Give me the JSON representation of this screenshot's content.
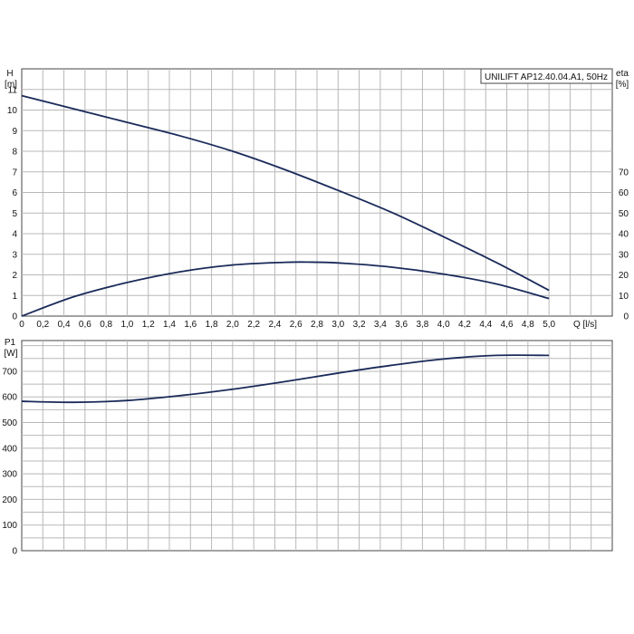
{
  "chart_title": "UNILIFT AP12.40.04.A1, 50Hz",
  "colors": {
    "curve": "#1a2a5a",
    "grid": "#b8b8b8",
    "frame": "#444444",
    "background": "#ffffff"
  },
  "chart_data": [
    {
      "type": "line",
      "panel": "top",
      "title": "UNILIFT AP12.40.04.A1, 50Hz",
      "xlabel": "Q [l/s]",
      "ylabel_line1": "H",
      "ylabel_line2": "[m]",
      "y2label_line1": "eta",
      "y2label_line2": "[%]",
      "xlim": [
        0,
        5.6
      ],
      "ylim": [
        0,
        12
      ],
      "y2lim": [
        0,
        120
      ],
      "x_ticks": [
        "0",
        "0,2",
        "0,4",
        "0,6",
        "0,8",
        "1,0",
        "1,2",
        "1,4",
        "1,6",
        "1,8",
        "2,0",
        "2,2",
        "2,4",
        "2,6",
        "2,8",
        "3,0",
        "3,2",
        "3,4",
        "3,6",
        "3,8",
        "4,0",
        "4,2",
        "4,4",
        "4,6",
        "4,8",
        "5,0"
      ],
      "y_ticks": [
        "0",
        "1",
        "2",
        "3",
        "4",
        "5",
        "6",
        "7",
        "8",
        "9",
        "10",
        "11"
      ],
      "y2_ticks": [
        "0",
        "10",
        "20",
        "30",
        "40",
        "50",
        "60",
        "70"
      ],
      "grid": true,
      "series": [
        {
          "axis": "left",
          "x": [
            0,
            0.5,
            1.0,
            1.5,
            2.0,
            2.5,
            3.0,
            3.5,
            4.0,
            4.5,
            5.0
          ],
          "values": [
            10.7,
            10.05,
            9.4,
            8.75,
            8.0,
            7.1,
            6.1,
            5.05,
            3.85,
            2.6,
            1.25
          ]
        },
        {
          "axis": "right",
          "x": [
            0,
            0.5,
            1.0,
            1.5,
            2.0,
            2.5,
            2.7,
            3.0,
            3.5,
            4.0,
            4.5,
            5.0
          ],
          "values": [
            0,
            9.5,
            16.3,
            21.5,
            24.8,
            26.1,
            26.2,
            25.8,
            23.8,
            20.4,
            15.6,
            8.5
          ]
        }
      ]
    },
    {
      "type": "line",
      "panel": "bottom",
      "ylabel_line1": "P1",
      "ylabel_line2": "[W]",
      "xlim": [
        0,
        5.6
      ],
      "ylim": [
        0,
        820
      ],
      "y_ticks": [
        "0",
        "100",
        "200",
        "300",
        "400",
        "500",
        "600",
        "700"
      ],
      "grid": true,
      "series": [
        {
          "axis": "left",
          "x": [
            0,
            0.5,
            1.0,
            1.5,
            2.0,
            2.5,
            3.0,
            3.5,
            4.0,
            4.5,
            5.0
          ],
          "values": [
            583,
            579,
            586,
            605,
            630,
            660,
            693,
            723,
            748,
            762,
            762
          ]
        }
      ]
    }
  ]
}
